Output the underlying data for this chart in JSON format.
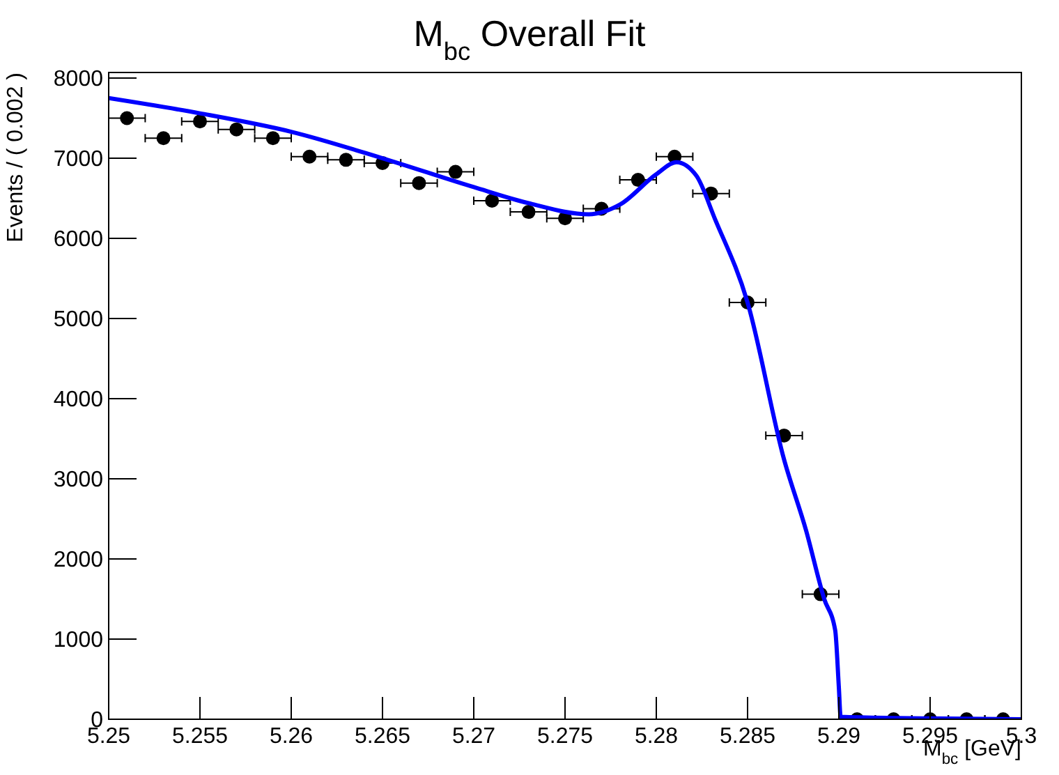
{
  "chart_data": {
    "type": "scatter",
    "title": "M$_{bc}$ Overall Fit",
    "xlabel": "M$_{bc}$ [GeV]",
    "ylabel": "Events / ( 0.002 )",
    "xlim": [
      5.25,
      5.3
    ],
    "ylim": [
      0,
      8070
    ],
    "xticks": [
      5.25,
      5.255,
      5.26,
      5.265,
      5.27,
      5.275,
      5.28,
      5.285,
      5.29,
      5.295,
      5.3
    ],
    "yticks": [
      0,
      1000,
      2000,
      3000,
      4000,
      5000,
      6000,
      7000,
      8000
    ],
    "grid": false,
    "series": [
      {
        "type": "scatter",
        "color": "#000000",
        "marker": "circle",
        "x": [
          5.251,
          5.253,
          5.255,
          5.257,
          5.259,
          5.261,
          5.263,
          5.265,
          5.267,
          5.269,
          5.271,
          5.273,
          5.275,
          5.277,
          5.279,
          5.281,
          5.283,
          5.285,
          5.287,
          5.289,
          5.291,
          5.293,
          5.295,
          5.297,
          5.299
        ],
        "values": [
          7500,
          7250,
          7460,
          7360,
          7250,
          7020,
          6980,
          6940,
          6690,
          6830,
          6470,
          6330,
          6250,
          6370,
          6730,
          7020,
          6560,
          5200,
          3540,
          1560,
          0,
          0,
          0,
          0,
          0
        ],
        "xerrors": [
          0.001,
          0.001,
          0.001,
          0.001,
          0.001,
          0.001,
          0.001,
          0.001,
          0.001,
          0.001,
          0.001,
          0.001,
          0.001,
          0.001,
          0.001,
          0.001,
          0.001,
          0.001,
          0.001,
          0.001,
          0.001,
          0.001,
          0.001,
          0.001,
          0.001
        ]
      },
      {
        "type": "line",
        "color": "#0000ff",
        "marker": "none",
        "line_style": "solid",
        "x": [
          5.25,
          5.255,
          5.26,
          5.265,
          5.27,
          5.273,
          5.2763,
          5.278,
          5.28,
          5.2811,
          5.2822,
          5.2832,
          5.285,
          5.287,
          5.2882,
          5.2892,
          5.2898,
          5.29,
          5.2901,
          5.295,
          5.3
        ],
        "values": [
          7750,
          7560,
          7330,
          7000,
          6640,
          6440,
          6300,
          6420,
          6800,
          6950,
          6780,
          6250,
          5200,
          3240,
          2360,
          1500,
          1110,
          400,
          30,
          10,
          0
        ]
      }
    ]
  }
}
